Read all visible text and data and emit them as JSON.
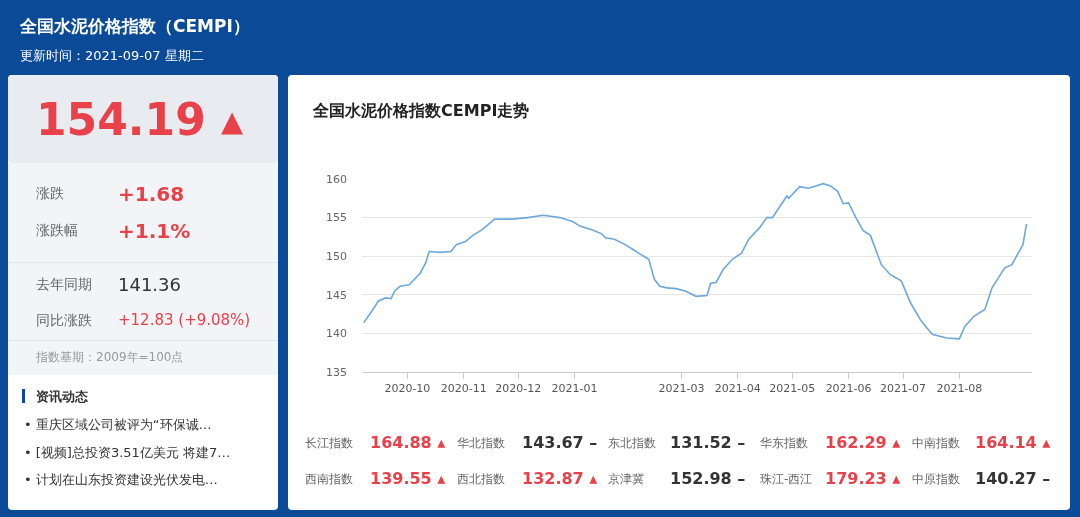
{
  "chart_data": [
    {
      "type": "other",
      "title": "全国水泥价格指数（CEMPI）",
      "subtitle": "更新时间：2021-09-07 星期二",
      "annotations": [
        "154.19 ▴",
        "涨跌",
        "+1.68",
        "涨跌幅",
        "+1.1%",
        "去年同期",
        "141.36",
        "同比涨跌",
        "+12.83 (+9.08%)",
        "指数基期：2009年=100点",
        "资讯动态",
        "• 重庆区域公司被评为“环保诚…",
        "• [视频]总投资3.51亿美元 将建7…",
        "• 计划在山东投资建设光伏发电…"
      ]
    },
    {
      "type": "line",
      "title": "全国水泥价格指数CEMPI走势",
      "color": "#6fa8dc",
      "grid": "y",
      "line_style": "solid",
      "x": [
        "2020-09-07",
        "2020-09-12",
        "2020-09-15",
        "2020-09-19",
        "2020-09-22",
        "2020-09-24",
        "2020-09-27",
        "2020-10-02",
        "2020-10-08",
        "2020-10-11",
        "2020-10-13",
        "2020-10-19",
        "2020-10-25",
        "2020-10-28",
        "2020-11-02",
        "2020-11-06",
        "2020-11-11",
        "2020-11-14",
        "2020-11-18",
        "2020-11-28",
        "2020-12-06",
        "2020-12-15",
        "2020-12-24",
        "2020-12-31",
        "2021-01-04",
        "2021-01-11",
        "2021-01-16",
        "2021-01-18",
        "2021-01-23",
        "2021-01-29",
        "2021-02-02",
        "2021-02-06",
        "2021-02-11",
        "2021-02-14",
        "2021-02-17",
        "2021-02-21",
        "2021-02-26",
        "2021-03-03",
        "2021-03-09",
        "2021-03-15",
        "2021-03-17",
        "2021-03-20",
        "2021-03-24",
        "2021-03-29",
        "2021-04-03",
        "2021-04-07",
        "2021-04-13",
        "2021-04-17",
        "2021-04-20",
        "2021-04-28",
        "2021-04-29",
        "2021-05-05",
        "2021-05-10",
        "2021-05-18",
        "2021-05-22",
        "2021-05-26",
        "2021-05-29",
        "2021-06-01",
        "2021-06-05",
        "2021-06-09",
        "2021-06-13",
        "2021-06-19",
        "2021-06-24",
        "2021-06-30",
        "2021-07-05",
        "2021-07-11",
        "2021-07-17",
        "2021-07-25",
        "2021-08-01",
        "2021-08-04",
        "2021-08-09",
        "2021-08-15",
        "2021-08-19",
        "2021-08-26",
        "2021-08-30",
        "2021-09-01",
        "2021-09-05",
        "2021-09-07"
      ],
      "values": [
        141.4,
        143.1,
        144.2,
        144.6,
        144.5,
        145.5,
        146.1,
        146.3,
        147.8,
        149.1,
        150.6,
        150.5,
        150.6,
        151.5,
        151.9,
        152.7,
        153.4,
        154.0,
        154.8,
        154.8,
        155.0,
        155.3,
        155.0,
        154.5,
        153.9,
        153.4,
        152.9,
        152.4,
        152.2,
        151.5,
        150.9,
        150.3,
        149.6,
        147.0,
        146.1,
        145.9,
        145.8,
        145.5,
        144.8,
        144.9,
        146.5,
        146.6,
        148.3,
        149.6,
        150.4,
        152.2,
        153.7,
        155.0,
        155.0,
        157.8,
        157.5,
        159.0,
        158.8,
        159.4,
        159.1,
        158.4,
        156.8,
        156.9,
        155.0,
        153.3,
        152.7,
        148.9,
        147.6,
        146.8,
        144.0,
        141.6,
        139.9,
        139.4,
        139.3,
        140.9,
        142.2,
        143.1,
        145.9,
        148.5,
        148.9,
        149.8,
        151.5,
        154.2
      ],
      "xlim": [
        "2020-09-06",
        "2021-09-10"
      ],
      "xticks": [
        "2020-10",
        "2020-11",
        "2020-12",
        "2021-01",
        "2021-03",
        "2021-04",
        "2021-05",
        "2021-06",
        "2021-07",
        "2021-08"
      ],
      "ylim": [
        135,
        160
      ],
      "yticks": [
        135,
        140,
        145,
        150,
        155,
        160
      ]
    },
    {
      "type": "other",
      "annotations": [
        "长江指数",
        "164.88 ▴",
        "华北指数",
        "143.67 –",
        "东北指数",
        "131.52 –",
        "华东指数",
        "162.29 ▴",
        "中南指数",
        "164.14 ▴",
        "西南指数",
        "139.55 ▴",
        "西北指数",
        "132.87 ▴",
        "京津冀",
        "152.98 –",
        "珠江-西江",
        "179.23 ▴",
        "中原指数",
        "140.27 –"
      ]
    }
  ]
}
